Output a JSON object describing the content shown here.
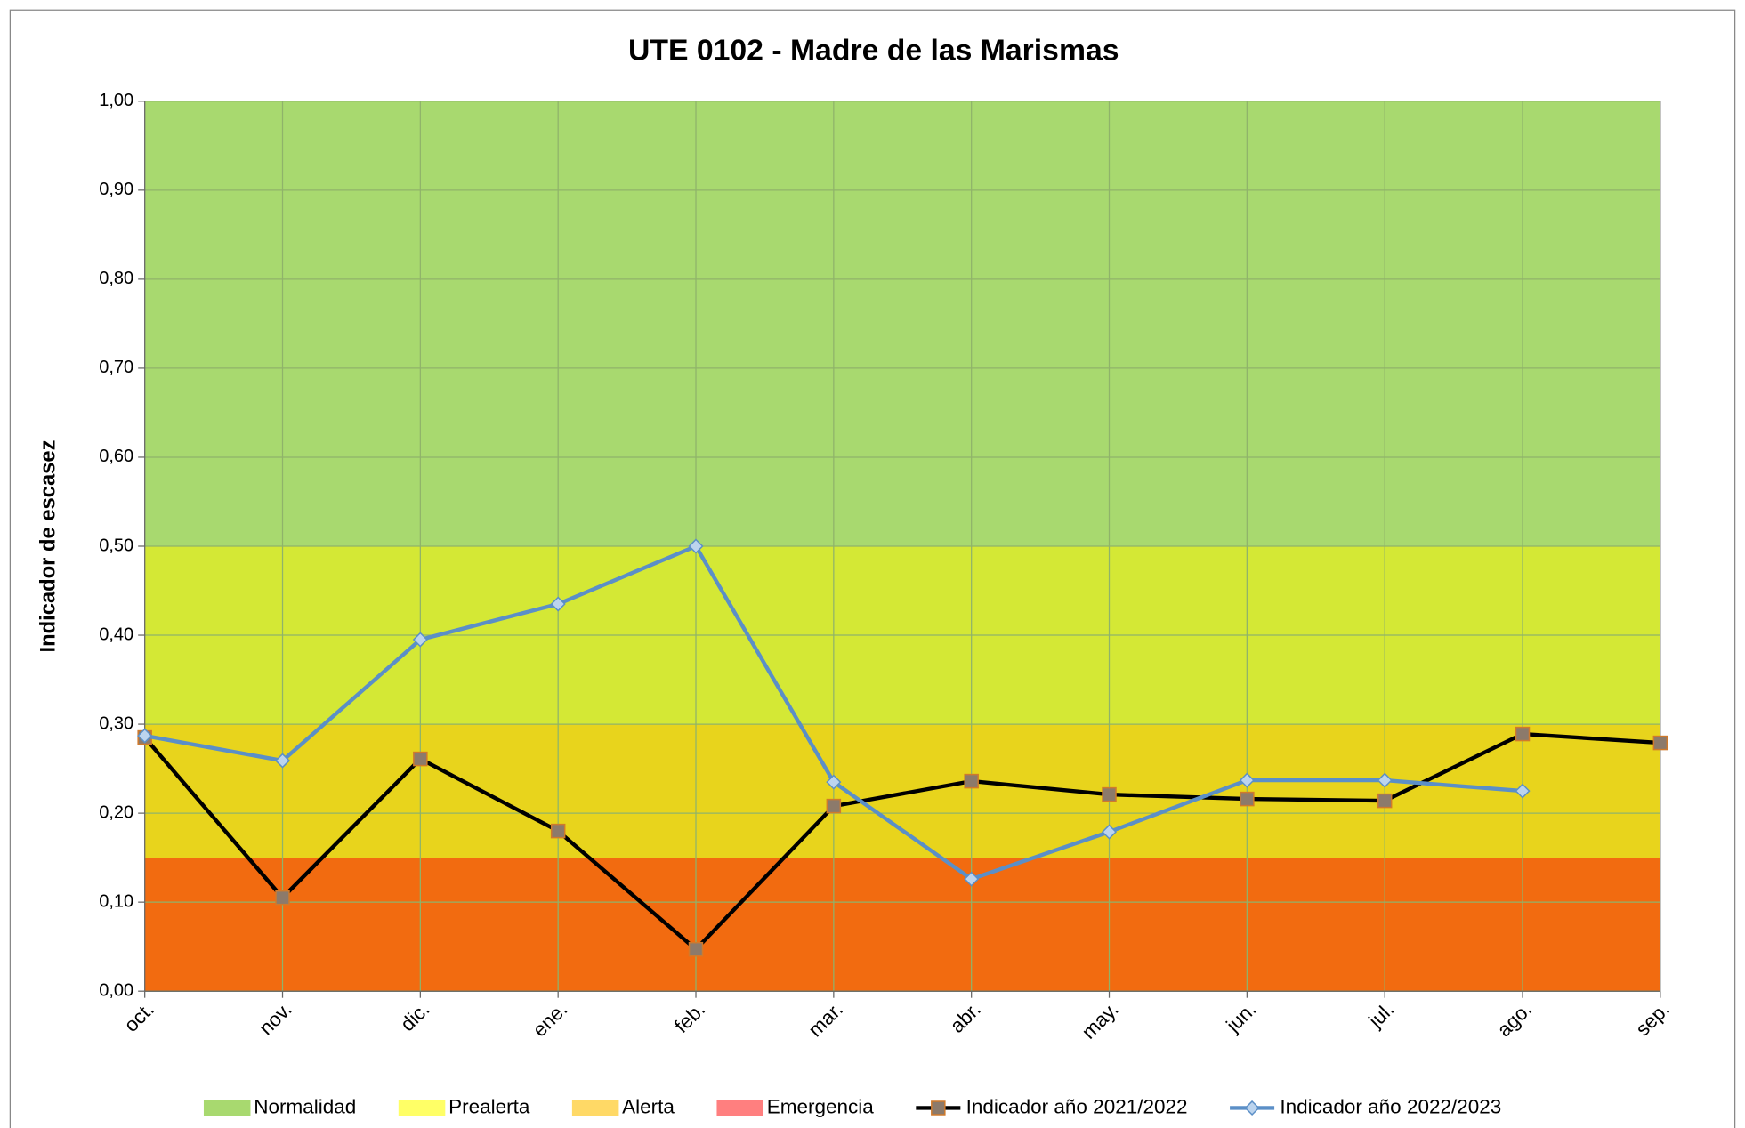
{
  "chart_data": {
    "type": "line",
    "title": "UTE 0102 - Madre de las Marismas",
    "y_label": "Indicador de escasez",
    "categories": [
      "oct.",
      "nov.",
      "dic.",
      "ene.",
      "feb.",
      "mar.",
      "abr.",
      "may.",
      "jun.",
      "jul.",
      "ago.",
      "sep."
    ],
    "bands": [
      {
        "name": "Normalidad",
        "color": "#a8d96f",
        "legend_color": "#a8d96f",
        "from": 0.5,
        "to": 1.0
      },
      {
        "name": "Prealerta",
        "color": "#d4e835",
        "legend_color": "#ffff66",
        "from": 0.3,
        "to": 0.5
      },
      {
        "name": "Alerta",
        "color": "#e8d41c",
        "legend_color": "#ffd966",
        "from": 0.15,
        "to": 0.3
      },
      {
        "name": "Emergencia",
        "color": "#f26b10",
        "legend_color": "#ff7f7f",
        "from": 0.0,
        "to": 0.15
      }
    ],
    "series": [
      {
        "name": "Indicador año 2021/2022",
        "color": "#000000",
        "marker": "square",
        "marker_color": "#8c7a6b",
        "values": [
          0.285,
          0.105,
          0.261,
          0.18,
          0.047,
          0.208,
          0.236,
          0.221,
          0.216,
          0.214,
          0.289,
          0.279
        ]
      },
      {
        "name": "Indicador año 2022/2023",
        "color": "#5b8fc7",
        "marker": "diamond",
        "marker_color": "#bcd4ee",
        "values": [
          0.287,
          0.259,
          0.395,
          0.435,
          0.5,
          0.235,
          0.126,
          0.179,
          0.237,
          0.237,
          0.225,
          null
        ]
      }
    ],
    "ylim": [
      0,
      1
    ],
    "yticks": [
      {
        "value": 0,
        "label": "0,00"
      },
      {
        "value": 0.1,
        "label": "0,10"
      },
      {
        "value": 0.2,
        "label": "0,20"
      },
      {
        "value": 0.3,
        "label": "0,30"
      },
      {
        "value": 0.4,
        "label": "0,40"
      },
      {
        "value": 0.5,
        "label": "0,50"
      },
      {
        "value": 0.6,
        "label": "0,60"
      },
      {
        "value": 0.7,
        "label": "0,70"
      },
      {
        "value": 0.8,
        "label": "0,80"
      },
      {
        "value": 0.9,
        "label": "0,90"
      },
      {
        "value": 1,
        "label": "1,00"
      }
    ],
    "grid": true
  }
}
